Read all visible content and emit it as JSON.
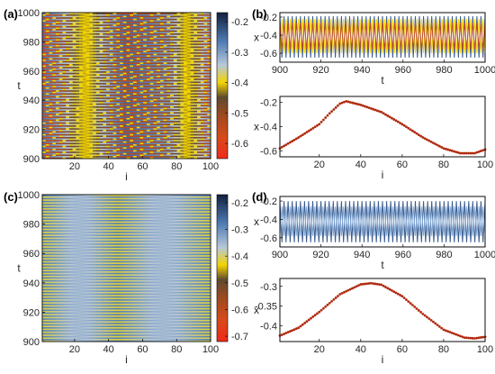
{
  "figure": {
    "panel_labels": [
      "(a)",
      "(b)",
      "(c)",
      "(d)"
    ]
  },
  "chart_data": [
    {
      "id": "a",
      "type": "heatmap",
      "title": "",
      "xlabel": "i",
      "ylabel": "t",
      "xlim": [
        1,
        100
      ],
      "ylim": [
        900,
        1000
      ],
      "xticks": [
        20,
        40,
        60,
        80,
        100
      ],
      "yticks": [
        900,
        920,
        940,
        960,
        980,
        1000
      ],
      "colorbar": {
        "ticks": [
          -0.2,
          -0.3,
          -0.4,
          -0.5,
          -0.6
        ],
        "range": [
          -0.65,
          -0.17
        ],
        "colormap": [
          "#ef2a1a",
          "#c8521a",
          "#8a4a20",
          "#6b5a3a",
          "#f2d400",
          "#8ab4dc",
          "#3f6ea9",
          "#1a2a4a"
        ]
      },
      "pattern": "period-2 alternating rows with slow diagonal drift",
      "series": [
        {
          "row": "odd",
          "x": [
            1,
            25,
            50,
            75,
            100
          ],
          "values": [
            -0.58,
            -0.42,
            -0.24,
            -0.3,
            -0.55
          ]
        },
        {
          "row": "even",
          "x": [
            1,
            25,
            50,
            75,
            100
          ],
          "values": [
            -0.25,
            -0.4,
            -0.55,
            -0.5,
            -0.3
          ]
        }
      ]
    },
    {
      "id": "b",
      "type": "line",
      "subplots": [
        {
          "xlabel": "t",
          "ylabel": "x",
          "xlim": [
            900,
            1000
          ],
          "ylim": [
            -0.7,
            -0.15
          ],
          "xticks": [
            900,
            920,
            940,
            960,
            980,
            1000
          ],
          "yticks": [
            -0.2,
            -0.4,
            -0.6
          ],
          "series_colors": [
            "#3a5a8c",
            "#f2d400",
            "#c04a2a"
          ],
          "note": "time series of all i, oscillating between approx -0.65 and -0.18 with period 2"
        },
        {
          "type": "scatter",
          "xlabel": "i",
          "ylabel": "x",
          "xlim": [
            1,
            100
          ],
          "ylim": [
            -0.65,
            -0.15
          ],
          "xticks": [
            20,
            40,
            60,
            80,
            100
          ],
          "yticks": [
            -0.2,
            -0.4,
            -0.6
          ],
          "marker_color": "#b02a10",
          "x": [
            1,
            10,
            20,
            25,
            30,
            33,
            40,
            50,
            60,
            70,
            80,
            88,
            95,
            100
          ],
          "y": [
            -0.58,
            -0.49,
            -0.38,
            -0.29,
            -0.21,
            -0.19,
            -0.22,
            -0.28,
            -0.38,
            -0.49,
            -0.58,
            -0.62,
            -0.62,
            -0.59
          ]
        }
      ]
    },
    {
      "id": "c",
      "type": "heatmap",
      "title": "",
      "xlabel": "i",
      "ylabel": "t",
      "xlim": [
        1,
        100
      ],
      "ylim": [
        900,
        1000
      ],
      "xticks": [
        20,
        40,
        60,
        80,
        100
      ],
      "yticks": [
        900,
        920,
        940,
        960,
        980,
        1000
      ],
      "colorbar": {
        "ticks": [
          -0.2,
          -0.3,
          -0.4,
          -0.5,
          -0.6,
          -0.7
        ],
        "range": [
          -0.72,
          -0.17
        ],
        "colormap": [
          "#ef2a1a",
          "#c8521a",
          "#8a4a20",
          "#6b5a3a",
          "#f2d400",
          "#8ab4dc",
          "#3f6ea9",
          "#1a2a4a"
        ]
      },
      "pattern": "period-2 alternating horizontal rows",
      "series": [
        {
          "row": "odd",
          "x": [
            1,
            45,
            100
          ],
          "values": [
            -0.42,
            -0.28,
            -0.42
          ]
        },
        {
          "row": "even",
          "x": [
            1,
            45,
            100
          ],
          "values": [
            -0.28,
            -0.42,
            -0.28
          ]
        }
      ]
    },
    {
      "id": "d",
      "type": "line",
      "subplots": [
        {
          "xlabel": "t",
          "ylabel": "x",
          "xlim": [
            900,
            1000
          ],
          "ylim": [
            -0.7,
            -0.15
          ],
          "xticks": [
            900,
            920,
            940,
            960,
            980,
            1000
          ],
          "yticks": [
            -0.2,
            -0.4,
            -0.6
          ],
          "series_colors": [
            "#3a5a8c",
            "#7fa8d8"
          ],
          "note": "time series of all i, oscillating with period 2 between approx -0.65 and -0.2"
        },
        {
          "type": "scatter",
          "xlabel": "i",
          "ylabel": "x",
          "xlim": [
            1,
            100
          ],
          "ylim": [
            -0.44,
            -0.28
          ],
          "xticks": [
            20,
            40,
            60,
            80,
            100
          ],
          "yticks": [
            -0.3,
            -0.35,
            -0.4
          ],
          "marker_color": "#b02a10",
          "x": [
            1,
            10,
            20,
            30,
            40,
            45,
            50,
            60,
            70,
            80,
            90,
            95,
            100
          ],
          "y": [
            -0.425,
            -0.405,
            -0.365,
            -0.32,
            -0.295,
            -0.292,
            -0.296,
            -0.325,
            -0.37,
            -0.41,
            -0.43,
            -0.432,
            -0.428
          ]
        }
      ]
    }
  ]
}
